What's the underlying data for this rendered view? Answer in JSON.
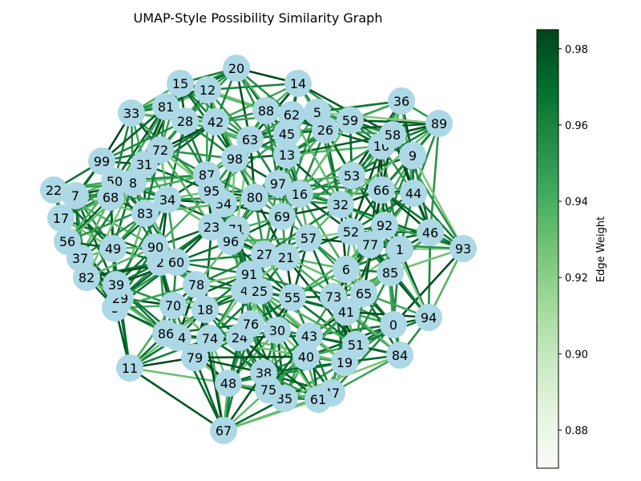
{
  "chart_data": {
    "type": "network",
    "title": "UMAP-Style Possibility Similarity Graph",
    "node_color": "#add8e6",
    "colormap": "Greens",
    "nodes": [
      {
        "id": "0"
      },
      {
        "id": "1"
      },
      {
        "id": "2"
      },
      {
        "id": "3"
      },
      {
        "id": "4"
      },
      {
        "id": "5"
      },
      {
        "id": "6"
      },
      {
        "id": "7"
      },
      {
        "id": "8"
      },
      {
        "id": "9"
      },
      {
        "id": "10"
      },
      {
        "id": "11"
      },
      {
        "id": "12"
      },
      {
        "id": "13"
      },
      {
        "id": "14"
      },
      {
        "id": "15"
      },
      {
        "id": "16"
      },
      {
        "id": "17"
      },
      {
        "id": "18"
      },
      {
        "id": "19"
      },
      {
        "id": "20"
      },
      {
        "id": "21"
      },
      {
        "id": "22"
      },
      {
        "id": "23"
      },
      {
        "id": "24"
      },
      {
        "id": "25"
      },
      {
        "id": "26"
      },
      {
        "id": "27"
      },
      {
        "id": "28"
      },
      {
        "id": "29"
      },
      {
        "id": "30"
      },
      {
        "id": "31"
      },
      {
        "id": "32"
      },
      {
        "id": "33"
      },
      {
        "id": "34"
      },
      {
        "id": "35"
      },
      {
        "id": "36"
      },
      {
        "id": "37"
      },
      {
        "id": "38"
      },
      {
        "id": "39"
      },
      {
        "id": "40"
      },
      {
        "id": "41"
      },
      {
        "id": "42"
      },
      {
        "id": "43"
      },
      {
        "id": "44"
      },
      {
        "id": "45"
      },
      {
        "id": "46"
      },
      {
        "id": "47"
      },
      {
        "id": "48"
      },
      {
        "id": "49"
      },
      {
        "id": "50"
      },
      {
        "id": "51"
      },
      {
        "id": "52"
      },
      {
        "id": "53"
      },
      {
        "id": "54"
      },
      {
        "id": "55"
      },
      {
        "id": "56"
      },
      {
        "id": "57"
      },
      {
        "id": "58"
      },
      {
        "id": "59"
      },
      {
        "id": "60"
      },
      {
        "id": "61"
      },
      {
        "id": "62"
      },
      {
        "id": "63"
      },
      {
        "id": "64"
      },
      {
        "id": "65"
      },
      {
        "id": "66"
      },
      {
        "id": "67"
      },
      {
        "id": "68"
      },
      {
        "id": "69"
      },
      {
        "id": "70"
      },
      {
        "id": "71"
      },
      {
        "id": "72"
      },
      {
        "id": "73"
      },
      {
        "id": "74"
      },
      {
        "id": "75"
      },
      {
        "id": "76"
      },
      {
        "id": "77"
      },
      {
        "id": "78"
      },
      {
        "id": "79"
      },
      {
        "id": "80"
      },
      {
        "id": "81"
      },
      {
        "id": "82"
      },
      {
        "id": "83"
      },
      {
        "id": "84"
      },
      {
        "id": "85"
      },
      {
        "id": "86"
      },
      {
        "id": "87"
      },
      {
        "id": "88"
      },
      {
        "id": "89"
      },
      {
        "id": "90"
      },
      {
        "id": "91"
      },
      {
        "id": "92"
      },
      {
        "id": "93"
      },
      {
        "id": "94"
      },
      {
        "id": "95"
      },
      {
        "id": "96"
      },
      {
        "id": "97"
      },
      {
        "id": "98"
      },
      {
        "id": "99"
      }
    ],
    "colorbar": {
      "label": "Edge Weight",
      "range": [
        0.87,
        0.985
      ],
      "ticks": [
        0.88,
        0.9,
        0.92,
        0.94,
        0.96,
        0.98
      ],
      "tick_labels": [
        "0.88",
        "0.90",
        "0.92",
        "0.94",
        "0.96",
        "0.98"
      ]
    }
  }
}
